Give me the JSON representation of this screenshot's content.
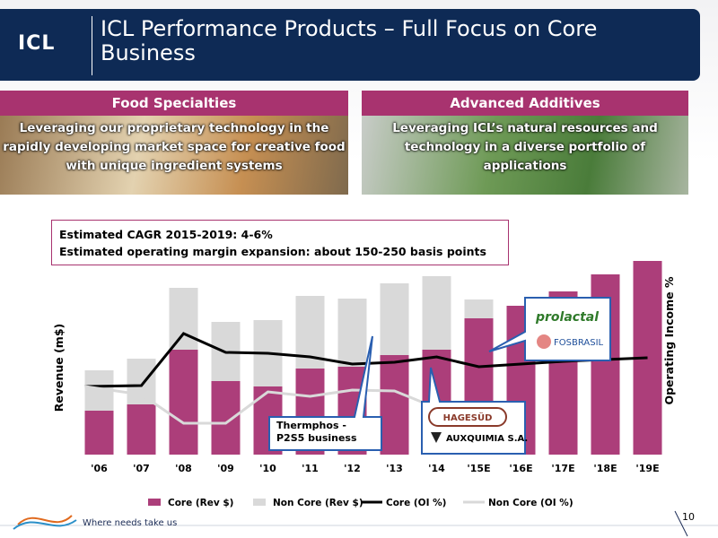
{
  "header": {
    "logo": "ICL",
    "title": "ICL Performance Products – Full Focus on Core Business"
  },
  "panels": [
    {
      "title": "Food Specialties",
      "text": "Leveraging our proprietary technology in the rapidly developing market space for creative food with unique ingredient systems"
    },
    {
      "title": "Advanced Additives",
      "text": "Leveraging ICL’s natural resources and technology in a diverse portfolio of applications"
    }
  ],
  "notes": [
    "Estimated CAGR 2015-2019: 4-6%",
    "Estimated operating margin expansion: about 150-250 basis points"
  ],
  "chart_data": {
    "type": "combo",
    "ylabel": "Revenue (m$)",
    "y2label": "Operating Income %",
    "categories": [
      "'06",
      "'07",
      "'08",
      "'09",
      "'10",
      "'11",
      "'12",
      "'13",
      "'14",
      "'15E",
      "'16E",
      "'17E",
      "'18E",
      "'19E"
    ],
    "ylim": [
      0,
      230
    ],
    "y2lim": [
      0,
      230
    ],
    "legend": "bottom",
    "series": [
      {
        "name": "Core (Rev $)",
        "mark": "bar",
        "color": "#ac3e7a",
        "values": [
          49,
          56,
          117,
          82,
          76,
          96,
          98,
          111,
          117,
          152,
          166,
          182,
          201,
          216
        ]
      },
      {
        "name": "Non Core (Rev $)",
        "mark": "bar",
        "color": "#d9d9d9",
        "values": [
          45,
          51,
          69,
          66,
          74,
          81,
          76,
          80,
          82,
          21,
          0,
          0,
          0,
          0
        ]
      },
      {
        "name": "Core (OI %)",
        "mark": "line",
        "axis": "y2",
        "color": "#000000",
        "values": [
          76,
          77,
          135,
          114,
          113,
          109,
          101,
          103,
          109,
          98,
          101,
          104,
          106,
          108
        ]
      },
      {
        "name": "Non Core (OI %)",
        "mark": "line",
        "axis": "y2",
        "color": "#d9d9d9",
        "values": [
          76,
          67,
          35,
          35,
          70,
          65,
          72,
          71,
          52,
          null,
          null,
          null,
          null,
          null
        ]
      }
    ],
    "callouts": [
      "Thermphos - P2S5 business",
      "prolactal",
      "FOSBRASIL",
      "HAGESÜD",
      "AUXQUIMIA S.A."
    ]
  },
  "footer": {
    "tagline": "Where needs take us",
    "page": "10"
  }
}
